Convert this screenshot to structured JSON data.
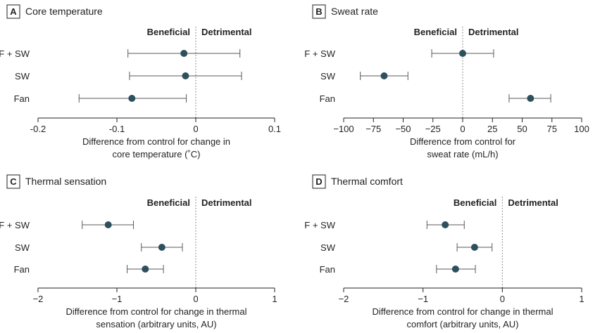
{
  "chart_data": [
    {
      "type": "forest",
      "panel_letter": "A",
      "title": "Core temperature",
      "beneficial_label": "Beneficial",
      "detrimental_label": "Detrimental",
      "categories": [
        "F + SW",
        "SW",
        "Fan"
      ],
      "estimates": [
        -0.015,
        -0.013,
        -0.081
      ],
      "ci_low": [
        -0.086,
        -0.084,
        -0.148
      ],
      "ci_high": [
        0.056,
        0.058,
        -0.012
      ],
      "xlim": [
        -0.2,
        0.1
      ],
      "xticks": [
        -0.2,
        -0.1,
        0,
        0.1
      ],
      "xtick_labels": [
        "-0.2",
        "-0.1",
        "0",
        "0.1"
      ],
      "xlabel_lines": [
        "Difference from control for change in",
        "core temperature (˚C)"
      ]
    },
    {
      "type": "forest",
      "panel_letter": "B",
      "title": "Sweat rate",
      "beneficial_label": "Beneficial",
      "detrimental_label": "Detrimental",
      "categories": [
        "F + SW",
        "SW",
        "Fan"
      ],
      "estimates": [
        0,
        -66,
        57
      ],
      "ci_low": [
        -26,
        -86,
        39
      ],
      "ci_high": [
        26,
        -46,
        74
      ],
      "xlim": [
        -100,
        100
      ],
      "xticks": [
        -100,
        -75,
        -50,
        -25,
        0,
        25,
        50,
        75,
        100
      ],
      "xtick_labels": [
        "−100",
        "−75",
        "−50",
        "−25",
        "0",
        "25",
        "50",
        "75",
        "100"
      ],
      "xlabel_lines": [
        "Difference from control for",
        "sweat rate (mL/h)"
      ]
    },
    {
      "type": "forest",
      "panel_letter": "C",
      "title": "Thermal sensation",
      "beneficial_label": "Beneficial",
      "detrimental_label": "Detrimental",
      "categories": [
        "F + SW",
        "SW",
        "Fan"
      ],
      "estimates": [
        -1.11,
        -0.43,
        -0.64
      ],
      "ci_low": [
        -1.44,
        -0.69,
        -0.87
      ],
      "ci_high": [
        -0.79,
        -0.17,
        -0.41
      ],
      "xlim": [
        -2,
        1
      ],
      "xticks": [
        -2,
        -1,
        0,
        1
      ],
      "xtick_labels": [
        "−2",
        "−1",
        "0",
        "1"
      ],
      "xlabel_lines": [
        "Difference from control for change in thermal",
        "sensation (arbitrary units, AU)"
      ]
    },
    {
      "type": "forest",
      "panel_letter": "D",
      "title": "Thermal comfort",
      "beneficial_label": "Beneficial",
      "detrimental_label": "Detrimental",
      "categories": [
        "F + SW",
        "SW",
        "Fan"
      ],
      "estimates": [
        -0.72,
        -0.35,
        -0.59
      ],
      "ci_low": [
        -0.95,
        -0.57,
        -0.83
      ],
      "ci_high": [
        -0.48,
        -0.13,
        -0.34
      ],
      "xlim": [
        -2,
        1
      ],
      "xticks": [
        -2,
        -1,
        0,
        1
      ],
      "xtick_labels": [
        "−2",
        "−1",
        "0",
        "1"
      ],
      "xlabel_lines": [
        "Difference from control for change in thermal",
        "comfort (arbitrary units, AU)"
      ]
    }
  ],
  "colors": {
    "marker": "#2e4f5c",
    "ci_line": "#5a5a5a",
    "axis": "#231f20",
    "zero_line": "#6b6b6b",
    "text": "#231f20"
  }
}
